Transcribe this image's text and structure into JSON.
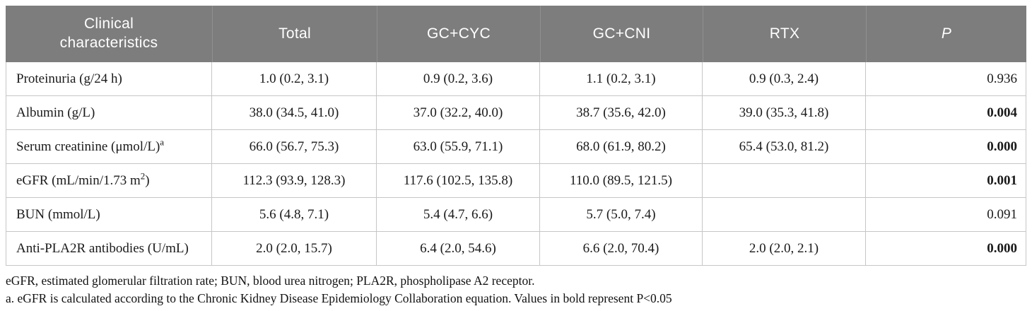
{
  "table": {
    "header": {
      "col1": "Clinical characteristics",
      "group_cols": [
        "Total",
        "GC+CYC",
        "GC+CNI",
        "RTX"
      ],
      "p_label": "P"
    },
    "rows": [
      {
        "label_parts": [
          {
            "text": "Proteinuria (g/24 h)"
          }
        ],
        "values": [
          "1.0 (0.2, 3.1)",
          "0.9 (0.2, 3.6)",
          "1.1 (0.2, 3.1)",
          "0.9 (0.3, 2.4)"
        ],
        "p": "0.936",
        "p_bold": false
      },
      {
        "label_parts": [
          {
            "text": "Albumin (g/L)"
          }
        ],
        "values": [
          "38.0 (34.5, 41.0)",
          "37.0 (32.2, 40.0)",
          "38.7 (35.6, 42.0)",
          "39.0 (35.3, 41.8)"
        ],
        "p": "0.004",
        "p_bold": true
      },
      {
        "label_parts": [
          {
            "text": "Serum creatinine (μmol/L)"
          },
          {
            "text": "a",
            "sup": true
          }
        ],
        "values": [
          "66.0 (56.7, 75.3)",
          "63.0 (55.9, 71.1)",
          "68.0 (61.9, 80.2)",
          "65.4 (53.0, 81.2)"
        ],
        "p": "0.000",
        "p_bold": true
      },
      {
        "label_parts": [
          {
            "text": "eGFR (mL/min/1.73 m"
          },
          {
            "text": "2",
            "sup": true
          },
          {
            "text": ")"
          }
        ],
        "values": [
          "112.3 (93.9, 128.3)",
          "117.6 (102.5, 135.8)",
          "110.0 (89.5, 121.5)",
          ""
        ],
        "p": "0.001",
        "p_bold": true
      },
      {
        "label_parts": [
          {
            "text": "BUN (mmol/L)"
          }
        ],
        "values": [
          "5.6 (4.8, 7.1)",
          "5.4 (4.7, 6.6)",
          "5.7 (5.0, 7.4)",
          ""
        ],
        "p": "0.091",
        "p_bold": false
      },
      {
        "label_parts": [
          {
            "text": "Anti-PLA2R antibodies (U/mL)"
          }
        ],
        "values": [
          "2.0 (2.0, 15.7)",
          "6.4 (2.0, 54.6)",
          "6.6 (2.0, 70.4)",
          "2.0 (2.0, 2.1)"
        ],
        "p": "0.000",
        "p_bold": true
      }
    ],
    "footnotes": [
      "eGFR, estimated glomerular filtration rate; BUN, blood urea nitrogen; PLA2R, phospholipase A2 receptor.",
      "a. eGFR is calculated according to the Chronic Kidney Disease Epidemiology Collaboration equation. Values in bold represent P<0.05"
    ]
  },
  "colors": {
    "header_bg": "#7d7d7d",
    "header_text": "#ffffff",
    "header_divider": "#909090",
    "body_text": "#1a1a1a",
    "grid_line": "#c6c6c6"
  }
}
